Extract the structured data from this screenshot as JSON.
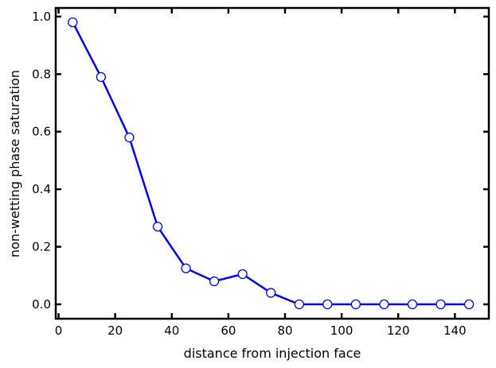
{
  "chart_data": {
    "type": "line",
    "title": "",
    "xlabel": "distance from injection face",
    "ylabel": "non-wetting phase saturation",
    "xlim": [
      -1,
      152
    ],
    "ylim": [
      -0.05,
      1.03
    ],
    "x_ticks": [
      0,
      20,
      40,
      60,
      80,
      100,
      120,
      140
    ],
    "y_ticks": [
      0.0,
      0.2,
      0.4,
      0.6,
      0.8,
      1.0
    ],
    "x_tick_labels": [
      "0",
      "20",
      "40",
      "60",
      "80",
      "100",
      "120",
      "140"
    ],
    "y_tick_labels": [
      "0.0",
      "0.2",
      "0.4",
      "0.6",
      "0.8",
      "1.0"
    ],
    "grid": false,
    "legend": "none",
    "series": [
      {
        "color": "#0000ee",
        "marker": "open-circle",
        "x": [
          5,
          15,
          25,
          35,
          45,
          55,
          65,
          75,
          85,
          95,
          105,
          115,
          125,
          135,
          145
        ],
        "y": [
          0.98,
          0.79,
          0.58,
          0.27,
          0.125,
          0.08,
          0.105,
          0.04,
          0.0,
          0.0,
          0.0,
          0.0,
          0.0,
          0.0,
          0.0
        ]
      }
    ]
  }
}
